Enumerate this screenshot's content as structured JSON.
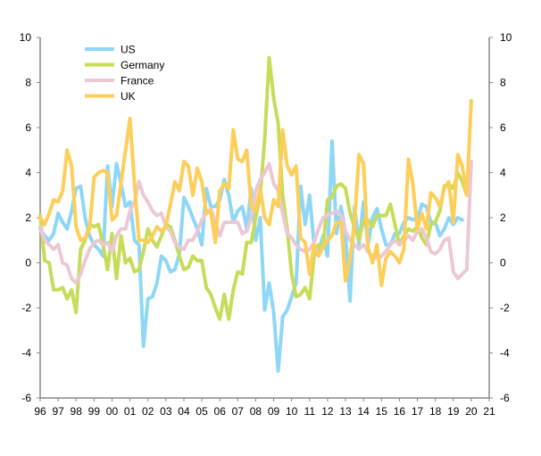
{
  "chart_data": {
    "type": "line",
    "title": "",
    "xlabel": "",
    "ylabel": "",
    "ylim": [
      -6,
      10
    ],
    "y_ticks": [
      "-6",
      "-4",
      "-2",
      "0",
      "2",
      "4",
      "6",
      "8",
      "10"
    ],
    "y_tick_values": [
      -6,
      -4,
      -2,
      0,
      2,
      4,
      6,
      8,
      10
    ],
    "xlim": [
      1996,
      2021
    ],
    "x_ticks": [
      "96",
      "97",
      "98",
      "99",
      "00",
      "01",
      "02",
      "03",
      "04",
      "05",
      "06",
      "07",
      "08",
      "09",
      "10",
      "11",
      "12",
      "13",
      "14",
      "15",
      "16",
      "17",
      "18",
      "19",
      "20",
      "21"
    ],
    "x_start": 1996,
    "x_step": 0.25,
    "grid": false,
    "legend_placement": "top-left",
    "series": [
      {
        "name": "US",
        "color": "#8fd7f6",
        "values": [
          1.5,
          1.2,
          1.0,
          1.3,
          2.2,
          1.8,
          1.5,
          2.3,
          3.3,
          3.4,
          2.0,
          1.2,
          0.8,
          0.6,
          0.3,
          4.3,
          2.5,
          4.4,
          3.5,
          2.5,
          2.7,
          1.0,
          0.8,
          -3.7,
          -1.6,
          -1.5,
          -0.9,
          0.3,
          0.1,
          -0.4,
          -0.3,
          0.4,
          2.9,
          2.5,
          2.0,
          1.5,
          0.8,
          3.3,
          2.5,
          2.5,
          2.8,
          3.7,
          3.0,
          1.8,
          2.3,
          2.5,
          1.5,
          3.3,
          1.0,
          2.0,
          -2.1,
          -0.9,
          -2.2,
          -4.8,
          -2.4,
          -2.1,
          -1.5,
          -0.9,
          3.4,
          1.7,
          3.0,
          0.8,
          0.5,
          1.2,
          0.3,
          5.4,
          1.3,
          2.5,
          1.3,
          -1.7,
          2.5,
          0.8,
          2.7,
          0.8,
          2.0,
          2.4,
          1.5,
          0.8,
          0.8,
          1.3,
          1.3,
          1.8,
          2.0,
          1.9,
          2.0,
          2.6,
          2.5,
          1.8,
          1.8,
          1.2,
          1.5,
          2.0,
          1.7,
          2.0,
          1.9
        ]
      },
      {
        "name": "Germany",
        "color": "#c8dc5a",
        "values": [
          2.1,
          0.1,
          0.0,
          -1.2,
          -1.2,
          -1.1,
          -1.6,
          -1.2,
          -2.2,
          0.6,
          1.0,
          1.7,
          1.6,
          1.7,
          0.8,
          -0.3,
          1.3,
          -0.7,
          1.2,
          0.0,
          0.2,
          -0.4,
          -0.3,
          0.5,
          1.5,
          1.0,
          0.7,
          1.2,
          1.7,
          1.6,
          1.0,
          0.3,
          -0.3,
          -0.2,
          0.3,
          0.1,
          0.1,
          -1.1,
          -1.4,
          -2.0,
          -2.5,
          -1.4,
          -2.5,
          -1.2,
          -0.4,
          -0.5,
          0.9,
          0.9,
          2.0,
          3.0,
          5.5,
          9.1,
          7.3,
          6.2,
          3.0,
          1.5,
          -0.5,
          -1.5,
          -1.4,
          -1.1,
          -1.6,
          0.3,
          0.8,
          0.7,
          2.8,
          2.9,
          3.4,
          3.5,
          3.3,
          2.2,
          1.6,
          1.0,
          1.9,
          1.9,
          1.6,
          2.1,
          2.1,
          2.1,
          2.6,
          1.7,
          0.8,
          1.2,
          1.5,
          1.4,
          1.6,
          1.1,
          0.8,
          1.7,
          1.8,
          2.3,
          3.4,
          3.5,
          3.3,
          4.0,
          3.6,
          3.0
        ]
      },
      {
        "name": "France",
        "color": "#ecc8d5",
        "values": [
          1.6,
          1.0,
          0.8,
          0.6,
          0.8,
          0.0,
          -0.1,
          -0.7,
          -0.9,
          -0.5,
          0.1,
          0.6,
          0.9,
          1.0,
          0.8,
          0.9,
          0.5,
          1.2,
          1.5,
          1.5,
          2.3,
          2.7,
          3.6,
          3.0,
          2.7,
          2.3,
          2.1,
          2.2,
          1.6,
          1.4,
          0.9,
          0.7,
          0.6,
          1.0,
          1.0,
          1.4,
          1.9,
          2.2,
          2.4,
          1.8,
          1.2,
          1.8,
          1.8,
          1.8,
          1.8,
          1.3,
          1.4,
          2.0,
          3.2,
          3.7,
          4.0,
          4.4,
          3.5,
          3.2,
          2.2,
          1.3,
          1.1,
          0.8,
          0.6,
          0.5,
          0.6,
          0.9,
          1.5,
          2.0,
          2.1,
          2.2,
          2.3,
          2.1,
          1.4,
          1.0,
          0.8,
          0.6,
          0.8,
          0.5,
          0.3,
          0.2,
          0.3,
          0.5,
          0.8,
          1.0,
          0.8,
          1.0,
          1.2,
          1.0,
          1.4,
          1.5,
          1.1,
          0.5,
          0.4,
          0.6,
          1.0,
          1.1,
          -0.4,
          -0.7,
          -0.5,
          -0.3,
          4.5
        ]
      },
      {
        "name": "UK",
        "color": "#fdcf5a",
        "values": [
          2.0,
          1.7,
          2.2,
          2.8,
          2.7,
          3.2,
          5.0,
          4.3,
          1.6,
          1.0,
          1.1,
          1.5,
          3.8,
          4.0,
          4.1,
          4.0,
          1.9,
          2.1,
          3.5,
          5.0,
          6.4,
          3.5,
          1.0,
          1.0,
          0.9,
          1.2,
          1.6,
          1.4,
          1.6,
          2.6,
          3.6,
          3.2,
          4.5,
          4.3,
          3.0,
          4.2,
          3.6,
          2.2,
          2.3,
          0.9,
          3.2,
          3.5,
          3.3,
          5.9,
          4.6,
          4.5,
          5.0,
          2.5,
          2.3,
          3.3,
          2.0,
          1.7,
          2.8,
          2.5,
          5.9,
          4.3,
          3.9,
          4.3,
          1.1,
          0.9,
          -0.5,
          0.8,
          0.3,
          0.7,
          1.0,
          1.2,
          1.8,
          1.8,
          -0.8,
          0.2,
          1.8,
          4.8,
          4.4,
          0.7,
          0.0,
          0.8,
          -1.0,
          0.2,
          0.5,
          0.3,
          0.0,
          0.6,
          4.6,
          3.5,
          1.5,
          2.2,
          1.5,
          3.1,
          2.9,
          2.5,
          3.3,
          3.6,
          1.8,
          4.8,
          4.3,
          3.0,
          7.2
        ]
      }
    ]
  }
}
